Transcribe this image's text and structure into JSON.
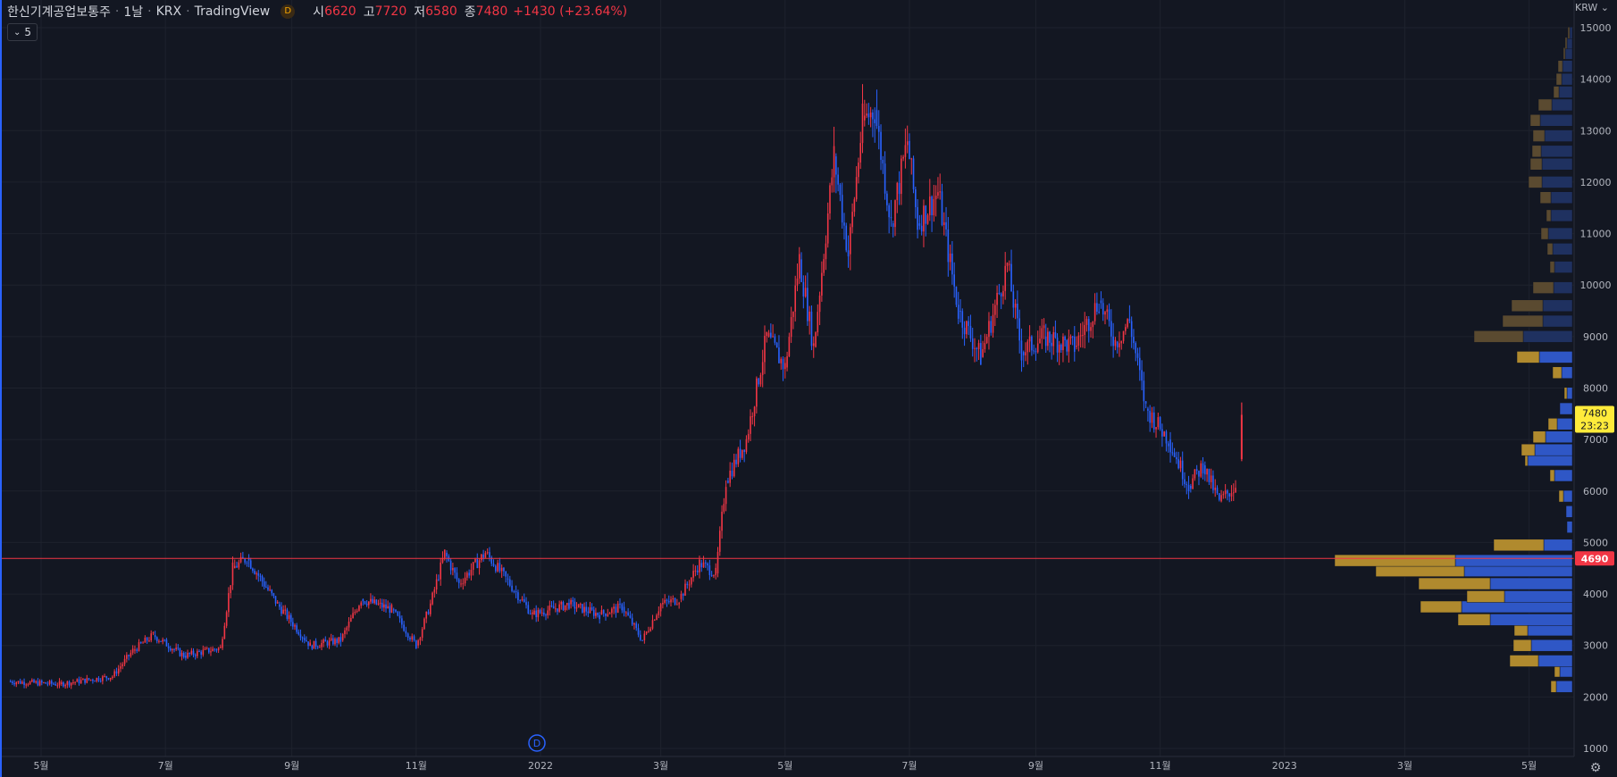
{
  "legend": {
    "symbol": "한신기계공업보통주",
    "interval": "1날",
    "exchange": "KRX",
    "source": "TradingView",
    "badge": "D",
    "open_label": "시",
    "open": "6620",
    "high_label": "고",
    "high": "7720",
    "low_label": "저",
    "low": "6580",
    "close_label": "종",
    "close": "7480",
    "change": "+1430 (+23.64%)"
  },
  "indicator_count": "5",
  "currency_label": "KRW",
  "event_marker": "D",
  "colors": {
    "background": "#131722",
    "grid": "#1e222d",
    "up": "#f23645",
    "down": "#2962ff",
    "axis_text": "#b2b5be",
    "price_line": "#f23645",
    "current_label_bg": "#ffeb3b",
    "vp_up": "#b08a2e",
    "vp_down": "#2f57c6",
    "vp_up_faded": "#5a4a30",
    "vp_down_faded": "#1f3160"
  },
  "chart_data": {
    "type": "candlestick",
    "x_ticks": [
      "5월",
      "7월",
      "9월",
      "11월",
      "2022",
      "3월",
      "5월",
      "7월",
      "9월",
      "11월",
      "2023",
      "3월",
      "5월"
    ],
    "y_ticks": [
      1000,
      2000,
      3000,
      4000,
      5000,
      6000,
      7000,
      8000,
      9000,
      10000,
      11000,
      12000,
      13000,
      14000,
      15000
    ],
    "ylim": [
      900,
      15100
    ],
    "grid": true,
    "horizontal_line": {
      "value": 4690,
      "label": "4690"
    },
    "current_price": {
      "value": 7480,
      "label": "7480",
      "countdown": "23:23"
    },
    "price_path": [
      [
        "2021-04-15",
        2300
      ],
      [
        "2021-05-10",
        2250
      ],
      [
        "2021-06-05",
        2400
      ],
      [
        "2021-06-15",
        2900
      ],
      [
        "2021-06-25",
        3200
      ],
      [
        "2021-07-10",
        2800
      ],
      [
        "2021-07-28",
        2950
      ],
      [
        "2021-08-03",
        4500
      ],
      [
        "2021-08-10",
        4700
      ],
      [
        "2021-08-25",
        3800
      ],
      [
        "2021-09-10",
        3000
      ],
      [
        "2021-09-25",
        3100
      ],
      [
        "2021-10-05",
        3900
      ],
      [
        "2021-10-20",
        3700
      ],
      [
        "2021-11-01",
        3000
      ],
      [
        "2021-11-08",
        3800
      ],
      [
        "2021-11-15",
        4800
      ],
      [
        "2021-11-22",
        4200
      ],
      [
        "2021-12-05",
        4800
      ],
      [
        "2021-12-15",
        4300
      ],
      [
        "2021-12-28",
        3600
      ],
      [
        "2022-01-15",
        3800
      ],
      [
        "2022-01-30",
        3600
      ],
      [
        "2022-02-10",
        3750
      ],
      [
        "2022-02-20",
        3100
      ],
      [
        "2022-03-01",
        3800
      ],
      [
        "2022-03-10",
        3900
      ],
      [
        "2022-03-20",
        4600
      ],
      [
        "2022-03-28",
        4400
      ],
      [
        "2022-04-02",
        6200
      ],
      [
        "2022-04-12",
        7000
      ],
      [
        "2022-04-22",
        9000
      ],
      [
        "2022-05-01",
        8400
      ],
      [
        "2022-05-08",
        10500
      ],
      [
        "2022-05-15",
        8800
      ],
      [
        "2022-05-25",
        12500
      ],
      [
        "2022-06-01",
        10600
      ],
      [
        "2022-06-08",
        13200
      ],
      [
        "2022-06-14",
        13400
      ],
      [
        "2022-06-22",
        11200
      ],
      [
        "2022-06-30",
        12800
      ],
      [
        "2022-07-05",
        11200
      ],
      [
        "2022-07-15",
        11800
      ],
      [
        "2022-07-25",
        9500
      ],
      [
        "2022-08-05",
        8600
      ],
      [
        "2022-08-18",
        10400
      ],
      [
        "2022-08-25",
        8700
      ],
      [
        "2022-09-05",
        9000
      ],
      [
        "2022-09-20",
        8800
      ],
      [
        "2022-10-02",
        9700
      ],
      [
        "2022-10-10",
        8900
      ],
      [
        "2022-10-17",
        9300
      ],
      [
        "2022-10-25",
        7600
      ],
      [
        "2022-11-05",
        7000
      ],
      [
        "2022-11-15",
        6100
      ],
      [
        "2022-11-22",
        6500
      ],
      [
        "2022-11-30",
        5800
      ],
      [
        "2022-12-08",
        6100
      ]
    ],
    "last_candle": {
      "open": 6620,
      "high": 7720,
      "low": 6580,
      "close": 7480
    },
    "volume_profile": [
      [
        2200,
        18,
        6
      ],
      [
        2500,
        14,
        6
      ],
      [
        2700,
        38,
        32
      ],
      [
        3000,
        46,
        20
      ],
      [
        3300,
        50,
        15
      ],
      [
        3500,
        92,
        36
      ],
      [
        3750,
        124,
        46
      ],
      [
        3950,
        76,
        42
      ],
      [
        4200,
        92,
        80
      ],
      [
        4450,
        121,
        99
      ],
      [
        4650,
        131,
        135
      ],
      [
        4950,
        32,
        56
      ],
      [
        5300,
        6,
        0
      ],
      [
        5600,
        7,
        0
      ],
      [
        5900,
        10,
        5
      ],
      [
        6300,
        20,
        5
      ],
      [
        6600,
        50,
        3
      ],
      [
        6800,
        42,
        15
      ],
      [
        7050,
        30,
        14
      ],
      [
        7300,
        17,
        10
      ],
      [
        7600,
        14,
        0
      ],
      [
        7900,
        6,
        3
      ],
      [
        8300,
        12,
        10
      ],
      [
        8600,
        37,
        25
      ],
      [
        9000,
        55,
        55
      ],
      [
        9300,
        33,
        45
      ],
      [
        9600,
        33,
        35
      ],
      [
        9950,
        21,
        23
      ],
      [
        10350,
        20,
        5
      ],
      [
        10700,
        22,
        6
      ],
      [
        11000,
        27,
        8
      ],
      [
        11350,
        24,
        5
      ],
      [
        11700,
        24,
        12
      ],
      [
        12000,
        34,
        15
      ],
      [
        12350,
        34,
        13
      ],
      [
        12600,
        35,
        10
      ],
      [
        12900,
        31,
        13
      ],
      [
        13200,
        36,
        11
      ],
      [
        13500,
        23,
        15
      ],
      [
        13750,
        15,
        6
      ],
      [
        14000,
        12,
        6
      ],
      [
        14250,
        11,
        5
      ],
      [
        14500,
        8,
        2
      ],
      [
        14700,
        6,
        2
      ],
      [
        14900,
        3,
        2
      ]
    ]
  }
}
